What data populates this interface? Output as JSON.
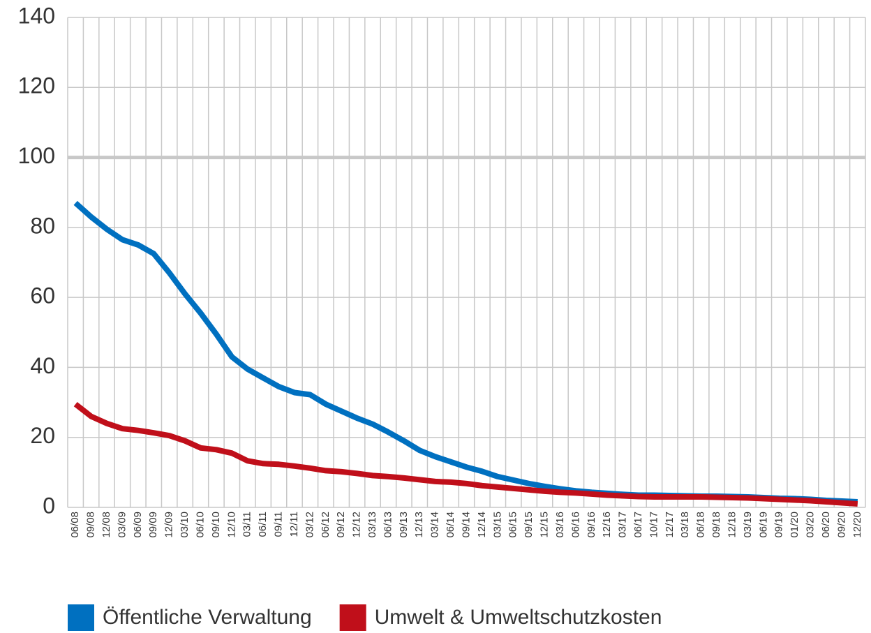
{
  "chart_data": {
    "type": "line",
    "categories": [
      "06/08",
      "09/08",
      "12/08",
      "03/09",
      "06/09",
      "09/09",
      "12/09",
      "03/10",
      "06/10",
      "09/10",
      "12/10",
      "03/11",
      "06/11",
      "09/11",
      "12/11",
      "03/12",
      "06/12",
      "09/12",
      "12/12",
      "03/13",
      "06/13",
      "09/13",
      "12/13",
      "03/14",
      "06/14",
      "09/14",
      "12/14",
      "03/15",
      "06/15",
      "09/15",
      "12/15",
      "03/16",
      "06/16",
      "09/16",
      "12/16",
      "03/17",
      "06/17",
      "10/17",
      "12/17",
      "03/18",
      "06/18",
      "09/18",
      "12/18",
      "03/19",
      "06/19",
      "09/19",
      "01/20",
      "03/20",
      "06/20",
      "09/20",
      "12/20"
    ],
    "series": [
      {
        "name": "Öffentliche Verwaltung",
        "color": "#0070c0",
        "values": [
          87,
          83,
          79.5,
          76.5,
          75,
          72.5,
          67,
          61,
          55.5,
          49.5,
          43,
          39.5,
          37,
          34.5,
          32.8,
          32.2,
          29.5,
          27.5,
          25.5,
          23.8,
          21.5,
          19,
          16.3,
          14.5,
          13,
          11.5,
          10.3,
          8.8,
          7.8,
          6.8,
          6,
          5.3,
          4.7,
          4.3,
          4,
          3.7,
          3.5,
          3.5,
          3.4,
          3.3,
          3.2,
          3.2,
          3.1,
          3,
          2.8,
          2.6,
          2.5,
          2.3,
          2,
          1.8,
          1.6
        ]
      },
      {
        "name": "Umwelt & Umweltschutzkosten",
        "color": "#c00f1a",
        "values": [
          29.5,
          26,
          24,
          22.5,
          22,
          21.3,
          20.5,
          19,
          17,
          16.5,
          15.5,
          13.3,
          12.5,
          12.3,
          11.8,
          11.2,
          10.5,
          10.2,
          9.7,
          9.1,
          8.8,
          8.4,
          7.9,
          7.4,
          7.2,
          6.8,
          6.2,
          5.8,
          5.4,
          5,
          4.6,
          4.3,
          4.1,
          3.8,
          3.5,
          3.3,
          3.1,
          3,
          3,
          3,
          3,
          2.9,
          2.8,
          2.7,
          2.5,
          2.3,
          2.1,
          1.9,
          1.6,
          1.3,
          1
        ]
      }
    ],
    "ylim": [
      0,
      140
    ],
    "yticks": [
      0,
      20,
      40,
      60,
      80,
      100,
      120,
      140
    ],
    "grid": true,
    "reference_line": 100,
    "legend": "bottom"
  }
}
